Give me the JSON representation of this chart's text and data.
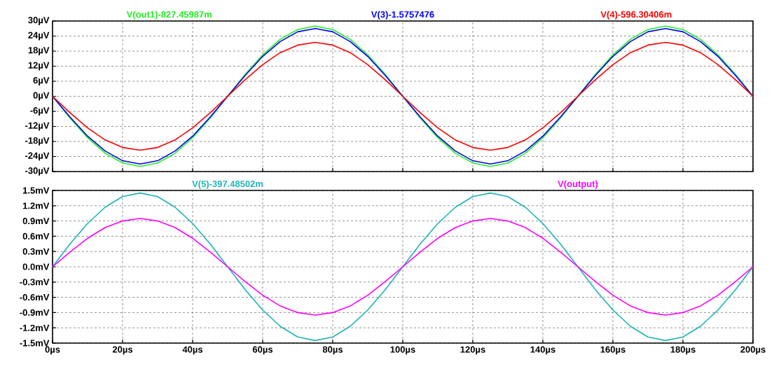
{
  "chart_data": [
    {
      "type": "line",
      "x": [
        0,
        5,
        10,
        15,
        20,
        25,
        30,
        35,
        40,
        45,
        50,
        55,
        60,
        65,
        70,
        75,
        80,
        85,
        90,
        95,
        100,
        105,
        110,
        115,
        120,
        125,
        130,
        135,
        140,
        145,
        150,
        155,
        160,
        165,
        170,
        175,
        180,
        185,
        190,
        195,
        200
      ],
      "xlim": [
        0,
        200
      ],
      "xticks": [
        {
          "value": 0,
          "label": null
        },
        {
          "value": 20,
          "label": null
        },
        {
          "value": 40,
          "label": null
        },
        {
          "value": 60,
          "label": null
        },
        {
          "value": 80,
          "label": null
        },
        {
          "value": 100,
          "label": null
        },
        {
          "value": 120,
          "label": null
        },
        {
          "value": 140,
          "label": null
        },
        {
          "value": 160,
          "label": null
        },
        {
          "value": 180,
          "label": null
        },
        {
          "value": 200,
          "label": null
        }
      ],
      "ylim": [
        -30,
        30
      ],
      "yticks": [
        {
          "value": -30,
          "label": "-30µV"
        },
        {
          "value": -24,
          "label": "-24µV"
        },
        {
          "value": -18,
          "label": "-18µV"
        },
        {
          "value": -12,
          "label": "-12µV"
        },
        {
          "value": -6,
          "label": "-6µV"
        },
        {
          "value": 0,
          "label": "0µV"
        },
        {
          "value": 6,
          "label": "6µV"
        },
        {
          "value": 12,
          "label": "12µV"
        },
        {
          "value": 18,
          "label": "18µV"
        },
        {
          "value": 24,
          "label": "24µV"
        },
        {
          "value": 30,
          "label": "30µV"
        }
      ],
      "tick_labels": "y",
      "grid": true,
      "legend": "top",
      "line_style": "solid",
      "series": [
        {
          "name": "V(out1)-827.45987m",
          "color": "#22ee22",
          "values": [
            0,
            -8.7,
            -16.5,
            -22.7,
            -26.6,
            -28,
            -26.6,
            -22.7,
            -16.5,
            -8.7,
            0,
            8.7,
            16.5,
            22.7,
            26.6,
            28,
            26.6,
            22.7,
            16.5,
            8.7,
            0,
            -8.7,
            -16.5,
            -22.7,
            -26.6,
            -28,
            -26.6,
            -22.7,
            -16.5,
            -8.7,
            0,
            8.7,
            16.5,
            22.7,
            26.6,
            28,
            26.6,
            22.7,
            16.5,
            8.7,
            0
          ]
        },
        {
          "name": "V(3)-1.5757476",
          "color": "#0000ff",
          "values": [
            0,
            -8.3,
            -15.9,
            -21.8,
            -25.7,
            -27,
            -25.7,
            -21.8,
            -15.9,
            -8.3,
            0,
            8.3,
            15.9,
            21.8,
            25.7,
            27,
            25.7,
            21.8,
            15.9,
            8.3,
            0,
            -8.3,
            -15.9,
            -21.8,
            -25.7,
            -27,
            -25.7,
            -21.8,
            -15.9,
            -8.3,
            0,
            8.3,
            15.9,
            21.8,
            25.7,
            27,
            25.7,
            21.8,
            15.9,
            8.3,
            0
          ]
        },
        {
          "name": "V(4)-596.30406m",
          "color": "#ff0000",
          "values": [
            0,
            -6.6,
            -12.6,
            -17.4,
            -20.4,
            -21.5,
            -20.4,
            -17.4,
            -12.6,
            -6.6,
            0,
            6.6,
            12.6,
            17.4,
            20.4,
            21.5,
            20.4,
            17.4,
            12.6,
            6.6,
            0,
            -6.6,
            -12.6,
            -17.4,
            -20.4,
            -21.5,
            -20.4,
            -17.4,
            -12.6,
            -6.6,
            0,
            6.6,
            12.6,
            17.4,
            20.4,
            21.5,
            20.4,
            17.4,
            12.6,
            6.6,
            0
          ]
        }
      ]
    },
    {
      "type": "line",
      "x": [
        0,
        5,
        10,
        15,
        20,
        25,
        30,
        35,
        40,
        45,
        50,
        55,
        60,
        65,
        70,
        75,
        80,
        85,
        90,
        95,
        100,
        105,
        110,
        115,
        120,
        125,
        130,
        135,
        140,
        145,
        150,
        155,
        160,
        165,
        170,
        175,
        180,
        185,
        190,
        195,
        200
      ],
      "xlim": [
        0,
        200
      ],
      "xticks": [
        {
          "value": 0,
          "label": "0µs"
        },
        {
          "value": 20,
          "label": "20µs"
        },
        {
          "value": 40,
          "label": "40µs"
        },
        {
          "value": 60,
          "label": "60µs"
        },
        {
          "value": 80,
          "label": "80µs"
        },
        {
          "value": 100,
          "label": "100µs"
        },
        {
          "value": 120,
          "label": "120µs"
        },
        {
          "value": 140,
          "label": "140µs"
        },
        {
          "value": 160,
          "label": "160µs"
        },
        {
          "value": 180,
          "label": "180µs"
        },
        {
          "value": 200,
          "label": "200µs"
        }
      ],
      "ylim": [
        -1.5,
        1.5
      ],
      "yticks": [
        {
          "value": -1.5,
          "label": "-1.5mV"
        },
        {
          "value": -1.2,
          "label": "-1.2mV"
        },
        {
          "value": -0.9,
          "label": "-0.9mV"
        },
        {
          "value": -0.6,
          "label": "-0.6mV"
        },
        {
          "value": -0.3,
          "label": "-0.3mV"
        },
        {
          "value": 0,
          "label": "0.0mV"
        },
        {
          "value": 0.3,
          "label": "0.3mV"
        },
        {
          "value": 0.6,
          "label": "0.6mV"
        },
        {
          "value": 0.9,
          "label": "0.9mV"
        },
        {
          "value": 1.2,
          "label": "1.2mV"
        },
        {
          "value": 1.5,
          "label": "1.5mV"
        }
      ],
      "grid": true,
      "legend": "top",
      "line_style": "solid",
      "series": [
        {
          "name": "V(5)-397.48502m",
          "color": "#1fb3b3",
          "values": [
            0,
            0.45,
            0.85,
            1.17,
            1.38,
            1.45,
            1.38,
            1.17,
            0.85,
            0.45,
            0,
            -0.45,
            -0.85,
            -1.17,
            -1.38,
            -1.45,
            -1.38,
            -1.17,
            -0.85,
            -0.45,
            0,
            0.45,
            0.85,
            1.17,
            1.38,
            1.45,
            1.38,
            1.17,
            0.85,
            0.45,
            0,
            -0.45,
            -0.85,
            -1.17,
            -1.38,
            -1.45,
            -1.38,
            -1.17,
            -0.85,
            -0.45,
            0
          ]
        },
        {
          "name": "V(output)",
          "color": "#ff00ff",
          "values": [
            0,
            0.29,
            0.56,
            0.77,
            0.9,
            0.95,
            0.9,
            0.77,
            0.56,
            0.29,
            0,
            -0.29,
            -0.56,
            -0.77,
            -0.9,
            -0.95,
            -0.9,
            -0.77,
            -0.56,
            -0.29,
            0,
            0.29,
            0.56,
            0.77,
            0.9,
            0.95,
            0.9,
            0.77,
            0.56,
            0.29,
            0,
            -0.29,
            -0.56,
            -0.77,
            -0.9,
            -0.95,
            -0.9,
            -0.77,
            -0.56,
            -0.29,
            0
          ]
        }
      ]
    }
  ]
}
